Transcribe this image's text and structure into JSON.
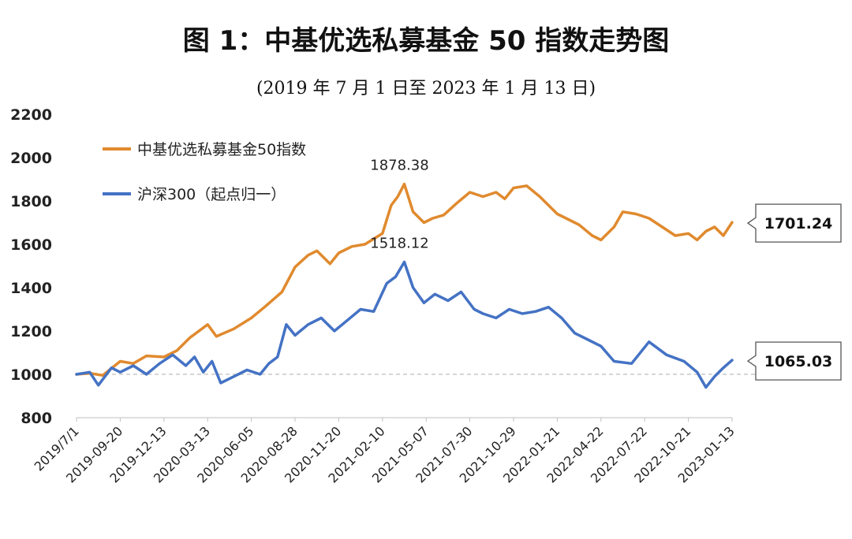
{
  "header": {
    "title": "图 1：中基优选私募基金 50 指数走势图",
    "subtitle": "(2019 年 7 月 1 日至 2023 年 1 月 13 日)"
  },
  "chart_data": {
    "type": "line",
    "ylim": [
      800,
      2200
    ],
    "y_ticks": [
      "800",
      "1000",
      "1200",
      "1400",
      "1600",
      "1800",
      "2000",
      "2200"
    ],
    "x_tick_labels": [
      "2019/7/1",
      "2019-09-20",
      "2019-12-13",
      "2020-03-13",
      "2020-06-05",
      "2020-08-28",
      "2020-11-20",
      "2021-02-10",
      "2021-05-07",
      "2021-07-30",
      "2021-10-29",
      "2022-01-21",
      "2022-04-22",
      "2022-07-22",
      "2022-10-21",
      "2023-01-13"
    ],
    "grid": false,
    "legend_position": "top-left",
    "reference_line": 1000,
    "x_index_range": [
      0,
      15
    ],
    "series": [
      {
        "name": "中基优选私募基金50指数",
        "color": "#e08a2e",
        "x": [
          0,
          0.3,
          0.6,
          1.0,
          1.3,
          1.6,
          2.0,
          2.3,
          2.6,
          3.0,
          3.2,
          3.6,
          4.0,
          4.3,
          4.7,
          5.0,
          5.3,
          5.5,
          5.8,
          6.0,
          6.3,
          6.6,
          7.0,
          7.2,
          7.35,
          7.5,
          7.7,
          7.95,
          8.15,
          8.4,
          8.7,
          9.0,
          9.3,
          9.6,
          9.8,
          10.0,
          10.3,
          10.6,
          10.8,
          11.0,
          11.2,
          11.5,
          11.8,
          12.0,
          12.3,
          12.5,
          12.8,
          13.1,
          13.4,
          13.7,
          14.0,
          14.2,
          14.4,
          14.6,
          14.8,
          15.0
        ],
        "values": [
          1000,
          1005,
          995,
          1060,
          1050,
          1085,
          1080,
          1110,
          1170,
          1230,
          1175,
          1210,
          1260,
          1310,
          1380,
          1495,
          1550,
          1570,
          1510,
          1560,
          1590,
          1600,
          1650,
          1780,
          1820,
          1878,
          1750,
          1700,
          1720,
          1735,
          1790,
          1840,
          1820,
          1840,
          1810,
          1860,
          1870,
          1820,
          1780,
          1740,
          1720,
          1690,
          1640,
          1620,
          1680,
          1750,
          1740,
          1720,
          1680,
          1640,
          1650,
          1620,
          1660,
          1680,
          1640,
          1701.24
        ]
      },
      {
        "name": "沪深300（起点归一）",
        "color": "#4472c4",
        "x": [
          0,
          0.3,
          0.5,
          0.8,
          1.0,
          1.3,
          1.6,
          1.9,
          2.2,
          2.5,
          2.7,
          2.9,
          3.1,
          3.3,
          3.6,
          3.9,
          4.2,
          4.4,
          4.6,
          4.8,
          5.0,
          5.3,
          5.6,
          5.9,
          6.2,
          6.5,
          6.8,
          7.1,
          7.3,
          7.5,
          7.7,
          7.95,
          8.2,
          8.5,
          8.8,
          9.1,
          9.3,
          9.6,
          9.9,
          10.2,
          10.5,
          10.8,
          11.1,
          11.4,
          11.7,
          12.0,
          12.3,
          12.7,
          13.1,
          13.5,
          13.9,
          14.2,
          14.4,
          14.6,
          14.8,
          15.0
        ],
        "values": [
          1000,
          1010,
          950,
          1030,
          1010,
          1040,
          1000,
          1050,
          1090,
          1040,
          1080,
          1010,
          1060,
          960,
          990,
          1020,
          1000,
          1050,
          1080,
          1230,
          1180,
          1230,
          1260,
          1200,
          1250,
          1300,
          1290,
          1420,
          1450,
          1518,
          1400,
          1330,
          1370,
          1340,
          1380,
          1300,
          1280,
          1260,
          1300,
          1280,
          1290,
          1310,
          1260,
          1190,
          1160,
          1130,
          1060,
          1050,
          1150,
          1090,
          1060,
          1010,
          940,
          990,
          1030,
          1065.03
        ]
      }
    ],
    "annotations": [
      {
        "label": "1878.38",
        "x": 7.5,
        "y": 1878.38
      },
      {
        "label": "1518.12",
        "x": 7.5,
        "y": 1518.12
      }
    ],
    "end_callouts": [
      {
        "label": "1701.24",
        "y": 1701.24
      },
      {
        "label": "1065.03",
        "y": 1065.03
      }
    ]
  }
}
